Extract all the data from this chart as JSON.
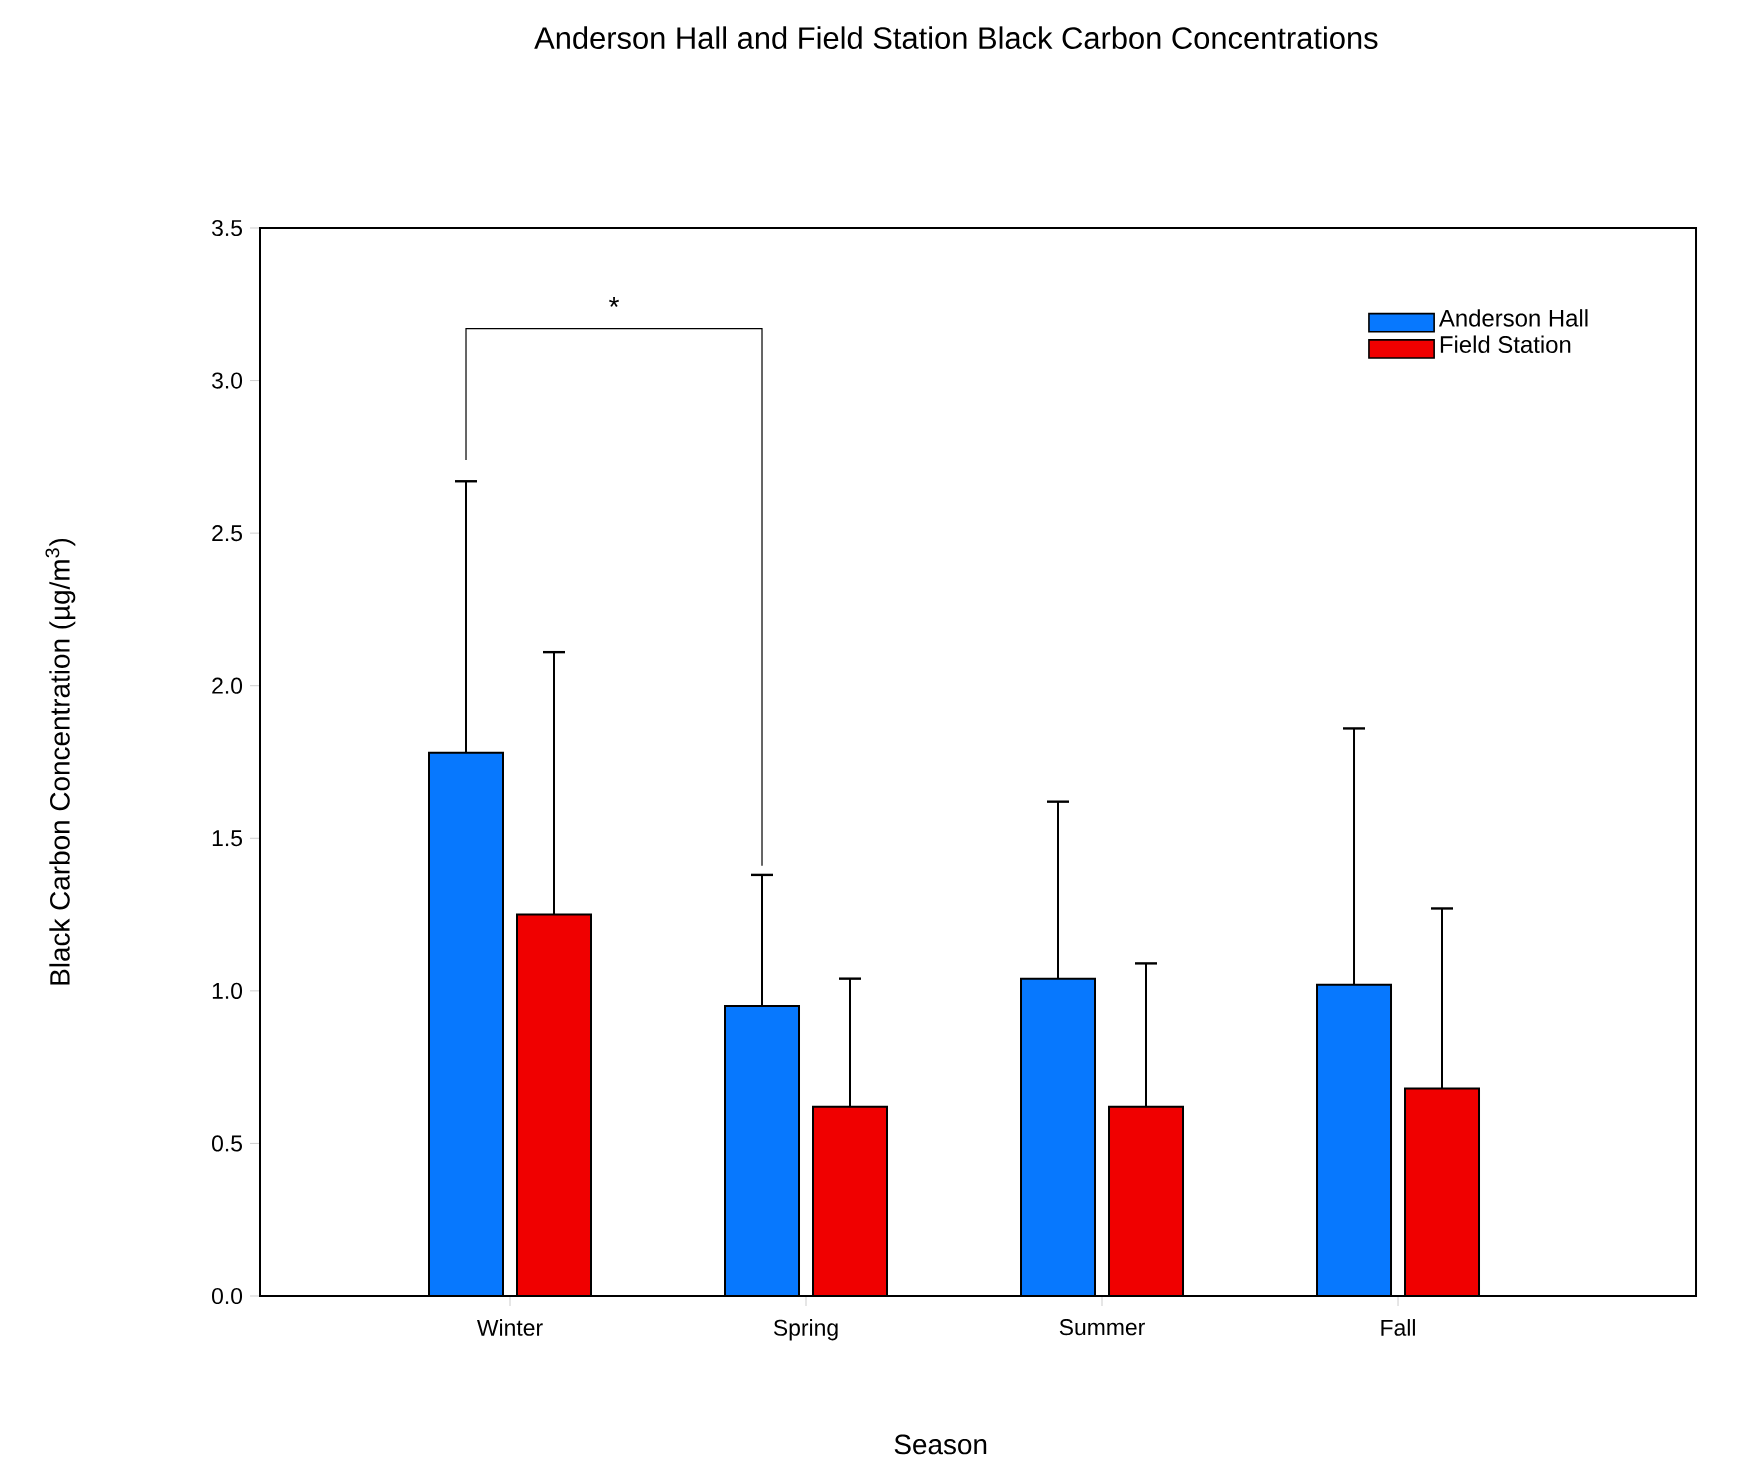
{
  "chart_data": {
    "type": "bar",
    "title": "Anderson Hall and Field Station Black Carbon Concentrations",
    "xlabel": "Season",
    "ylabel": "Black Carbon Concentration (µg/m$^{3}$)",
    "categories": [
      "Winter",
      "Spring",
      "Summer",
      "Fall"
    ],
    "series": [
      {
        "name": "Anderson Hall",
        "color": "#0778fe",
        "values": [
          1.78,
          0.95,
          1.04,
          1.02
        ],
        "errors": [
          [
            1.78,
            2.67
          ],
          [
            0.95,
            1.38
          ],
          [
            1.04,
            1.62
          ],
          [
            1.02,
            1.86
          ]
        ]
      },
      {
        "name": "Field Station",
        "color": "#f00000",
        "values": [
          1.25,
          0.62,
          0.62,
          0.68
        ],
        "errors": [
          [
            1.25,
            2.11
          ],
          [
            0.62,
            1.04
          ],
          [
            0.62,
            1.09
          ],
          [
            0.68,
            1.27
          ]
        ]
      }
    ],
    "ylim": [
      0,
      3.5
    ],
    "yticks": [
      {
        "value": 0,
        "label": "0.0"
      },
      0.5,
      {
        "value": 1,
        "label": "1.0"
      },
      1.5,
      {
        "value": 2,
        "label": "2.0"
      },
      2.5,
      {
        "value": 3,
        "label": "3.0"
      },
      3.5
    ],
    "legend": "top right",
    "grid": false,
    "annotations": [
      "*"
    ]
  }
}
